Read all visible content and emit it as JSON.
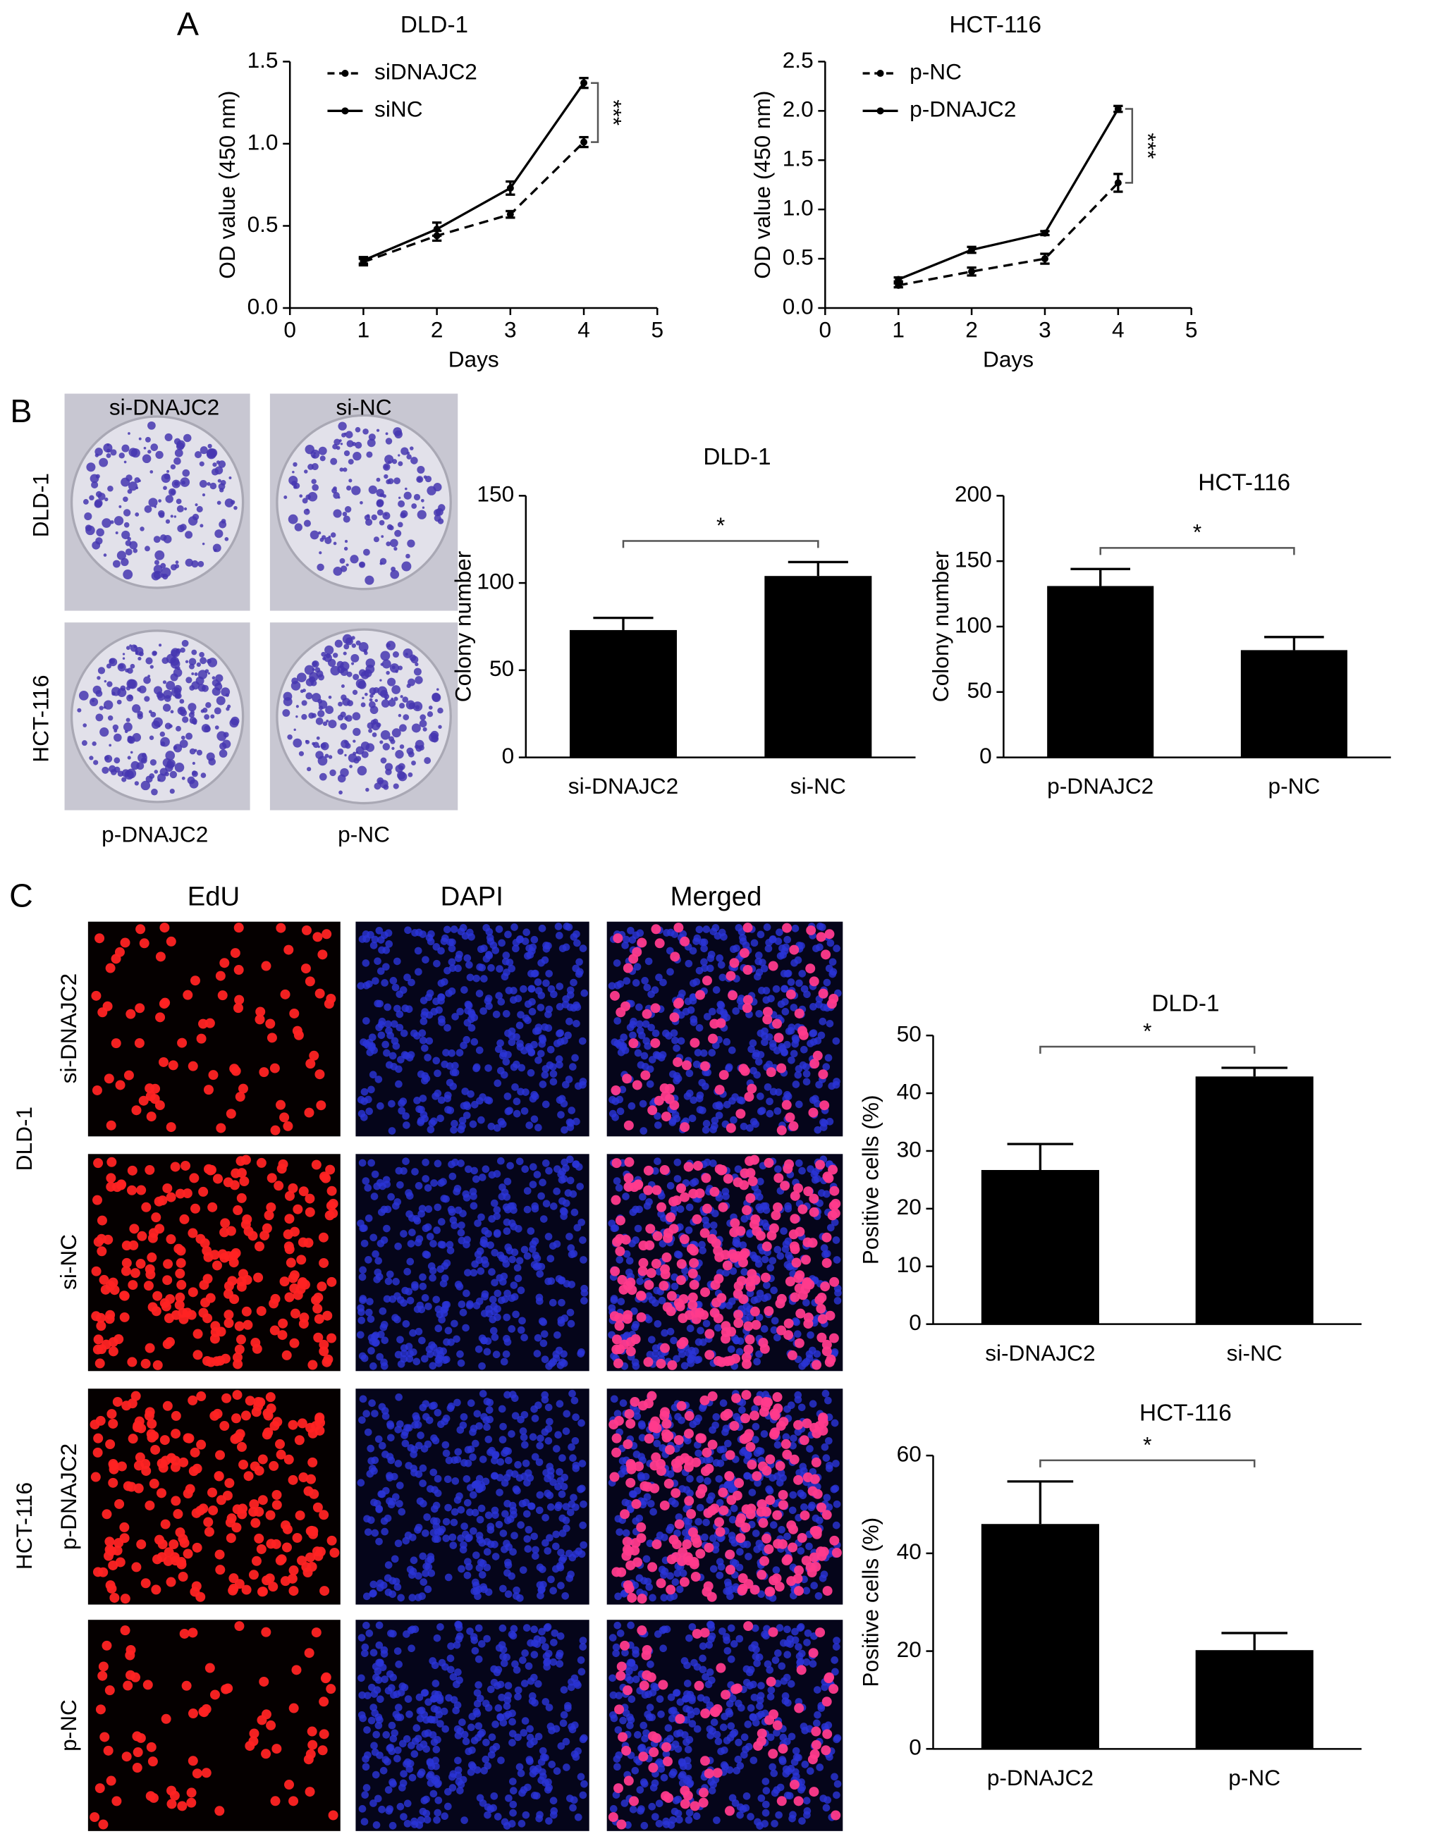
{
  "chart_data": [
    {
      "type": "line",
      "title": "DLD-1",
      "xlabel": "Days",
      "ylabel": "OD value (450 nm)",
      "x": [
        1,
        2,
        3,
        4
      ],
      "xlim": [
        0,
        5
      ],
      "xticks": [
        0,
        1,
        2,
        3,
        4,
        5
      ],
      "ylim": [
        0,
        1.5
      ],
      "yticks": [
        {
          "value": 0,
          "label": "0.0"
        },
        {
          "value": 0.5,
          "label": "0.5"
        },
        {
          "value": 1,
          "label": "1.0"
        },
        {
          "value": 1.5,
          "label": "1.5"
        }
      ],
      "legend": "upper left",
      "annotation": "***",
      "series": [
        {
          "name": "siDNAJC2",
          "style": "dashed",
          "color": "#000000",
          "values": [
            0.28,
            0.44,
            0.57,
            1.01
          ],
          "errors": [
            0.02,
            0.03,
            0.02,
            0.03
          ]
        },
        {
          "name": "siNC",
          "style": "solid",
          "color": "#000000",
          "values": [
            0.29,
            0.48,
            0.73,
            1.37
          ],
          "errors": [
            0.02,
            0.04,
            0.04,
            0.03
          ]
        }
      ]
    },
    {
      "type": "line",
      "title": "HCT-116",
      "xlabel": "Days",
      "ylabel": "OD value (450 nm)",
      "x": [
        1,
        2,
        3,
        4
      ],
      "xlim": [
        0,
        5
      ],
      "xticks": [
        0,
        1,
        2,
        3,
        4,
        5
      ],
      "ylim": [
        0,
        2.5
      ],
      "yticks": [
        {
          "value": 0,
          "label": "0.0"
        },
        {
          "value": 0.5,
          "label": "0.5"
        },
        {
          "value": 1,
          "label": "1.0"
        },
        {
          "value": 1.5,
          "label": "1.5"
        },
        {
          "value": 2,
          "label": "2.0"
        },
        {
          "value": 2.5,
          "label": "2.5"
        }
      ],
      "legend": "upper left",
      "annotation": "***",
      "series": [
        {
          "name": "p-NC",
          "style": "dashed",
          "color": "#000000",
          "values": [
            0.23,
            0.37,
            0.5,
            1.27
          ],
          "errors": [
            0.02,
            0.04,
            0.05,
            0.09
          ]
        },
        {
          "name": "p-DNAJC2",
          "style": "solid",
          "color": "#000000",
          "values": [
            0.29,
            0.59,
            0.76,
            2.02
          ],
          "errors": [
            0.02,
            0.03,
            0.02,
            0.03
          ]
        }
      ]
    },
    {
      "type": "bar",
      "title": "DLD-1",
      "ylabel": "Colony number",
      "categories": [
        "si-DNAJC2",
        "si-NC"
      ],
      "values": [
        73,
        104
      ],
      "errors": [
        7,
        8
      ],
      "color": "#000000",
      "ylim": [
        0,
        150
      ],
      "yticks": [
        0,
        50,
        100,
        150
      ],
      "annotation": "*"
    },
    {
      "type": "bar",
      "title": "HCT-116",
      "ylabel": "Colony number",
      "categories": [
        "p-DNAJC2",
        "p-NC"
      ],
      "values": [
        131,
        82
      ],
      "errors": [
        13,
        10
      ],
      "color": "#000000",
      "ylim": [
        0,
        200
      ],
      "yticks": [
        0,
        50,
        100,
        150,
        200
      ],
      "annotation": "*"
    },
    {
      "type": "bar",
      "title": "DLD-1",
      "ylabel": "Positive cells (%)",
      "categories": [
        "si-DNAJC2",
        "si-NC"
      ],
      "values": [
        26.7,
        42.9
      ],
      "errors": [
        4.5,
        1.5
      ],
      "color": "#000000",
      "ylim": [
        0,
        50
      ],
      "yticks": [
        0,
        10,
        20,
        30,
        40,
        50
      ],
      "annotation": "*"
    },
    {
      "type": "bar",
      "title": "HCT-116",
      "ylabel": "Positive cells (%)",
      "categories": [
        "p-DNAJC2",
        "p-NC"
      ],
      "values": [
        46,
        20.2
      ],
      "errors": [
        8.7,
        3.5
      ],
      "color": "#000000",
      "ylim": [
        0,
        60
      ],
      "yticks": [
        0,
        20,
        40,
        60
      ],
      "annotation": "*"
    }
  ],
  "figure": {
    "panel_labels": [
      "A",
      "B",
      "C"
    ],
    "colony": {
      "columns_top": [
        "si-DNAJC2",
        "si-NC"
      ],
      "columns_bottom": [
        "p-DNAJC2",
        "p-NC"
      ],
      "rows": [
        "DLD-1",
        "HCT-116"
      ]
    },
    "edu": {
      "columns": [
        "EdU",
        "DAPI",
        "Merged"
      ],
      "rows": [
        "si-DNAJC2",
        "si-NC",
        "p-DNAJC2",
        "p-NC"
      ],
      "groups": [
        "DLD-1",
        "HCT-116"
      ]
    }
  }
}
